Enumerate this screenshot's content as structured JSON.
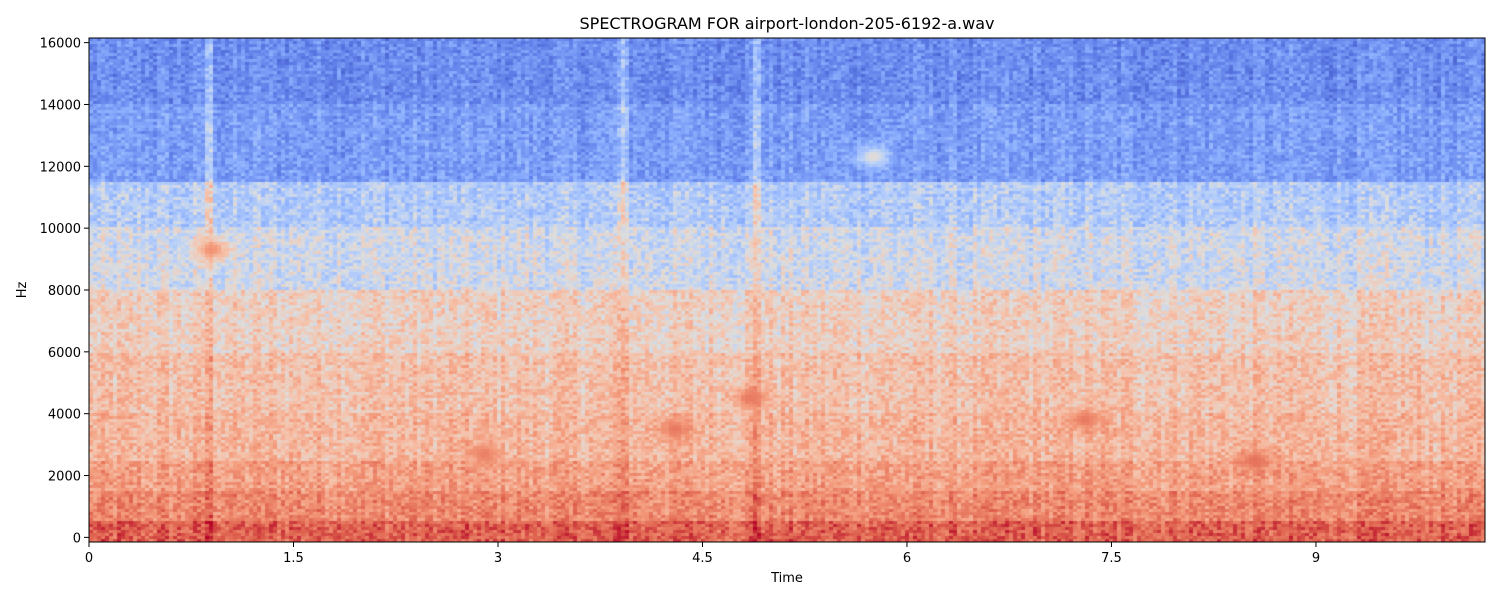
{
  "chart_data": {
    "type": "heatmap",
    "title": "SPECTROGRAM FOR airport-london-205-6192-a.wav",
    "xlabel": "Time",
    "ylabel": "Hz",
    "x_ticks": [
      0,
      1.5,
      3,
      4.5,
      6,
      7.5,
      9
    ],
    "x_tick_labels": [
      "0",
      "1.5",
      "3",
      "4.5",
      "6",
      "7.5",
      "9"
    ],
    "y_ticks": [
      0,
      2000,
      4000,
      6000,
      8000,
      10000,
      12000,
      14000,
      16000
    ],
    "y_tick_labels": [
      "0",
      "2000",
      "4000",
      "6000",
      "8000",
      "10000",
      "12000",
      "14000",
      "16000"
    ],
    "xlim": [
      0,
      10.24
    ],
    "ylim": [
      -150,
      16150
    ],
    "colormap": "coolwarm",
    "grid": false,
    "legend": "none",
    "colors": {
      "low": "#3b4cc0",
      "mid": "#dddddd",
      "high": "#b40426",
      "axes": "#000000"
    },
    "band_levels": [
      {
        "hz_from": 0,
        "hz_to": 500,
        "level": 0.85
      },
      {
        "hz_from": 500,
        "hz_to": 1500,
        "level": 0.76
      },
      {
        "hz_from": 1500,
        "hz_to": 2500,
        "level": 0.7
      },
      {
        "hz_from": 2500,
        "hz_to": 4000,
        "level": 0.64
      },
      {
        "hz_from": 4000,
        "hz_to": 6000,
        "level": 0.61
      },
      {
        "hz_from": 6000,
        "hz_to": 8000,
        "level": 0.56
      },
      {
        "hz_from": 8000,
        "hz_to": 10000,
        "level": 0.47
      },
      {
        "hz_from": 10000,
        "hz_to": 11500,
        "level": 0.4
      },
      {
        "hz_from": 11500,
        "hz_to": 14000,
        "level": 0.24
      },
      {
        "hz_from": 14000,
        "hz_to": 16000,
        "level": 0.19
      }
    ],
    "transients_time": [
      0.88,
      3.92,
      4.9
    ],
    "hotspots": [
      {
        "time": 0.9,
        "hz": 9300,
        "level": 0.74
      },
      {
        "time": 4.85,
        "hz": 4500,
        "level": 0.8
      },
      {
        "time": 2.9,
        "hz": 2700,
        "level": 0.78
      },
      {
        "time": 4.3,
        "hz": 3500,
        "level": 0.8
      },
      {
        "time": 7.3,
        "hz": 3800,
        "level": 0.8
      },
      {
        "time": 8.55,
        "hz": 2500,
        "level": 0.82
      },
      {
        "time": 5.75,
        "hz": 12300,
        "level": 0.52
      }
    ]
  }
}
